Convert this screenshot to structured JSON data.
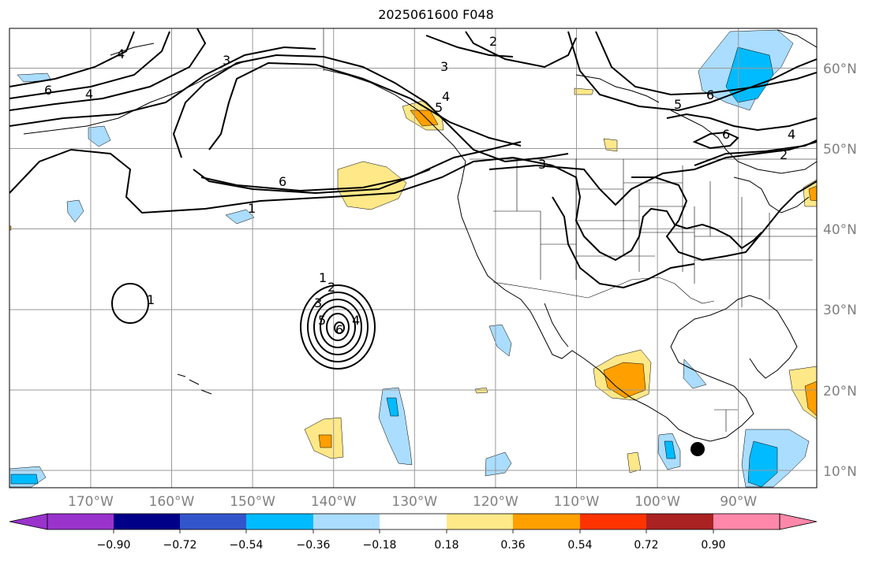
{
  "title": "2025061600 F048",
  "map": {
    "lat_labels": [
      "60°N",
      "50°N",
      "40°N",
      "30°N",
      "20°N",
      "10°N"
    ],
    "lon_labels": [
      "170°W",
      "160°W",
      "150°W",
      "140°W",
      "130°W",
      "120°W",
      "110°W",
      "100°W",
      "90°W"
    ],
    "contour_labels": [
      "2",
      "3",
      "3",
      "4",
      "5",
      "6",
      "5",
      "6",
      "6",
      "4",
      "2",
      "3",
      "6",
      "1",
      "4",
      "4",
      "1",
      "2",
      "3",
      "5",
      "6",
      "4",
      "1"
    ],
    "marker": "black-dot-marker",
    "grid": true
  },
  "colorbar": {
    "ticks": [
      "−0.90",
      "−0.72",
      "−0.54",
      "−0.36",
      "−0.18",
      "0.18",
      "0.36",
      "0.54",
      "0.72",
      "0.90"
    ],
    "colors": [
      "#9933cc",
      "#000088",
      "#3355cc",
      "#00bbff",
      "#aaddff",
      "#ffffff",
      "#ffe888",
      "#ffa000",
      "#ff3300",
      "#aa2222",
      "#ff88aa"
    ],
    "extend": "both"
  }
}
